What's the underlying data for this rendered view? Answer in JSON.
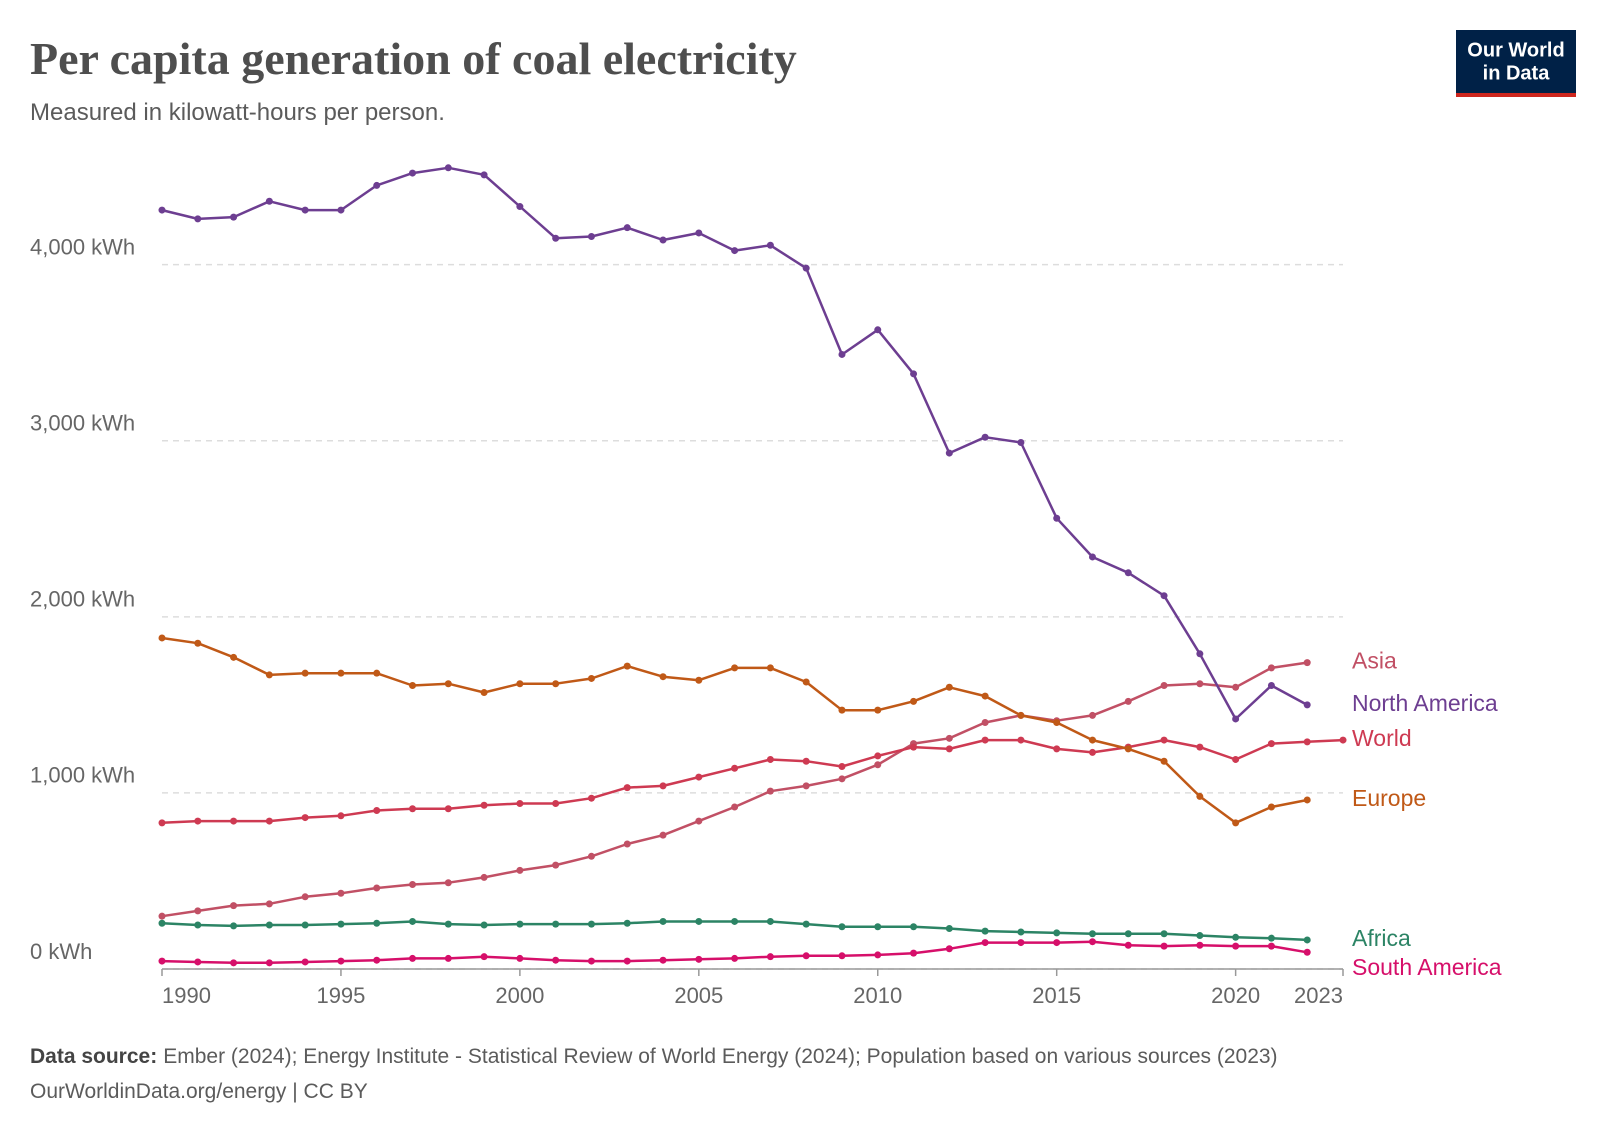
{
  "chart_data": {
    "type": "line",
    "title": "Per capita generation of coal electricity",
    "subtitle": "Measured in kilowatt-hours per person.",
    "source_label": "Data source:",
    "source": "Ember (2024); Energy Institute - Statistical Review of World Energy (2024); Population based on various sources (2023)",
    "footer": "OurWorldinData.org/energy | CC BY",
    "logo": [
      "Our World",
      "in Data"
    ],
    "x": [
      1990,
      1991,
      1992,
      1993,
      1994,
      1995,
      1996,
      1997,
      1998,
      1999,
      2000,
      2001,
      2002,
      2003,
      2004,
      2005,
      2006,
      2007,
      2008,
      2009,
      2010,
      2011,
      2012,
      2013,
      2014,
      2015,
      2016,
      2017,
      2018,
      2019,
      2020,
      2021,
      2022,
      2023
    ],
    "xlim": [
      1990,
      2023
    ],
    "xticks": [
      1990,
      1995,
      2000,
      2005,
      2010,
      2015,
      2020,
      2023
    ],
    "ylim": [
      0,
      4600
    ],
    "yticks": [
      {
        "value": 0,
        "label": "0 kWh"
      },
      {
        "value": 1000,
        "label": "1,000 kWh"
      },
      {
        "value": 2000,
        "label": "2,000 kWh"
      },
      {
        "value": 3000,
        "label": "3,000 kWh"
      },
      {
        "value": 4000,
        "label": "4,000 kWh"
      }
    ],
    "grid": true,
    "series": [
      {
        "name": "Asia",
        "color": "#c15065",
        "values": [
          300,
          330,
          360,
          370,
          410,
          430,
          460,
          480,
          490,
          520,
          560,
          590,
          640,
          710,
          760,
          840,
          920,
          1010,
          1040,
          1080,
          1160,
          1280,
          1310,
          1400,
          1440,
          1410,
          1440,
          1520,
          1610,
          1620,
          1600,
          1710,
          1740,
          null
        ]
      },
      {
        "name": "North America",
        "color": "#6d3e91",
        "values": [
          4310,
          4260,
          4270,
          4360,
          4310,
          4310,
          4450,
          4520,
          4550,
          4510,
          4330,
          4150,
          4160,
          4210,
          4140,
          4180,
          4080,
          4110,
          3980,
          3490,
          3630,
          3380,
          2930,
          3020,
          2990,
          2560,
          2340,
          2250,
          2120,
          1790,
          1420,
          1610,
          1500,
          null
        ]
      },
      {
        "name": "World",
        "color": "#ce3a52",
        "values": [
          830,
          840,
          840,
          840,
          860,
          870,
          900,
          910,
          910,
          930,
          940,
          940,
          970,
          1030,
          1040,
          1090,
          1140,
          1190,
          1180,
          1150,
          1210,
          1260,
          1250,
          1300,
          1300,
          1250,
          1230,
          1260,
          1300,
          1260,
          1190,
          1280,
          1290,
          1300
        ]
      },
      {
        "name": "Europe",
        "color": "#c05917",
        "values": [
          1880,
          1850,
          1770,
          1670,
          1680,
          1680,
          1680,
          1610,
          1620,
          1570,
          1620,
          1620,
          1650,
          1720,
          1660,
          1640,
          1710,
          1710,
          1630,
          1470,
          1470,
          1520,
          1600,
          1550,
          1440,
          1400,
          1300,
          1250,
          1180,
          980,
          830,
          920,
          960,
          null
        ]
      },
      {
        "name": "Africa",
        "color": "#2c8465",
        "values": [
          260,
          250,
          245,
          250,
          250,
          255,
          260,
          270,
          255,
          250,
          255,
          255,
          255,
          260,
          270,
          270,
          270,
          270,
          255,
          240,
          240,
          240,
          230,
          215,
          210,
          205,
          200,
          200,
          200,
          190,
          180,
          175,
          165,
          null
        ]
      },
      {
        "name": "South America",
        "color": "#d60f6a",
        "values": [
          45,
          40,
          35,
          35,
          40,
          45,
          50,
          60,
          60,
          70,
          60,
          50,
          45,
          45,
          50,
          55,
          60,
          70,
          75,
          75,
          80,
          90,
          115,
          150,
          150,
          150,
          155,
          135,
          130,
          135,
          130,
          130,
          95,
          null
        ]
      }
    ]
  }
}
